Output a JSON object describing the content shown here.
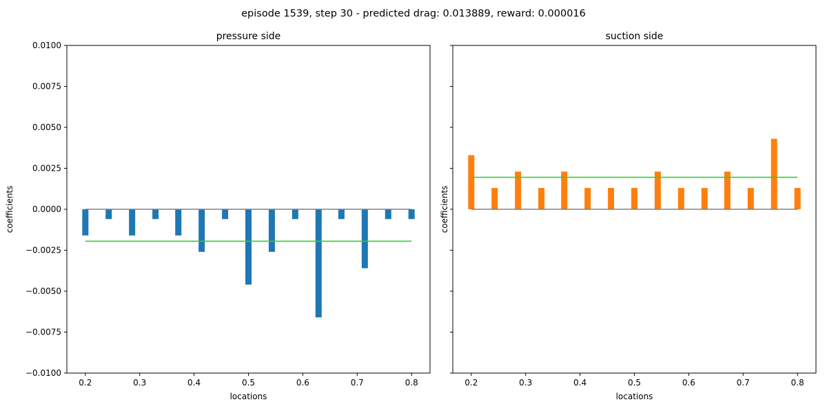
{
  "suptitle": "episode 1539, step 30 - predicted drag: 0.013889, reward: 0.000016",
  "chart_data": [
    {
      "type": "bar",
      "title": "pressure side",
      "xlabel": "locations",
      "ylabel": "coefficients",
      "ylim": [
        -0.01,
        0.01
      ],
      "xlim": [
        0.166,
        0.834
      ],
      "xticks": [
        0.2,
        0.3,
        0.4,
        0.5,
        0.6,
        0.7,
        0.8
      ],
      "xtick_labels": [
        "0.2",
        "0.3",
        "0.4",
        "0.5",
        "0.6",
        "0.7",
        "0.8"
      ],
      "yticks": [
        -0.01,
        -0.0075,
        -0.005,
        -0.0025,
        0.0,
        0.0025,
        0.005,
        0.0075,
        0.01
      ],
      "ytick_labels": [
        "−0.0100",
        "−0.0075",
        "−0.0050",
        "−0.0025",
        "0.0000",
        "0.0025",
        "0.0050",
        "0.0075",
        "0.0100"
      ],
      "show_yticklabels": true,
      "bar_width": 0.0114,
      "color": "#1f77b4",
      "x": [
        0.2,
        0.243,
        0.286,
        0.329,
        0.371,
        0.414,
        0.457,
        0.5,
        0.543,
        0.586,
        0.629,
        0.671,
        0.714,
        0.757,
        0.8
      ],
      "values": [
        -0.0016,
        -0.0006,
        -0.0016,
        -0.0006,
        -0.0016,
        -0.0026,
        -0.0006,
        -0.0046,
        -0.0026,
        -0.0006,
        -0.0066,
        -0.0006,
        -0.0036,
        -0.0006,
        -0.0006
      ],
      "lines": [
        {
          "y": 0.0,
          "x0": 0.2,
          "x1": 0.8,
          "color": "#808080"
        },
        {
          "y": -0.00195,
          "x0": 0.2,
          "x1": 0.8,
          "color": "#32cd32"
        }
      ]
    },
    {
      "type": "bar",
      "title": "suction side",
      "xlabel": "locations",
      "ylabel": "coefficients",
      "ylim": [
        -0.01,
        0.01
      ],
      "xlim": [
        0.166,
        0.834
      ],
      "xticks": [
        0.2,
        0.3,
        0.4,
        0.5,
        0.6,
        0.7,
        0.8
      ],
      "xtick_labels": [
        "0.2",
        "0.3",
        "0.4",
        "0.5",
        "0.6",
        "0.7",
        "0.8"
      ],
      "yticks": [
        -0.01,
        -0.0075,
        -0.005,
        -0.0025,
        0.0,
        0.0025,
        0.005,
        0.0075,
        0.01
      ],
      "ytick_labels": [
        "",
        "",
        "",
        "",
        "",
        "",
        "",
        "",
        ""
      ],
      "show_yticklabels": false,
      "bar_width": 0.0114,
      "color": "#ff7f0e",
      "x": [
        0.2,
        0.243,
        0.286,
        0.329,
        0.371,
        0.414,
        0.457,
        0.5,
        0.543,
        0.586,
        0.629,
        0.671,
        0.714,
        0.757,
        0.8
      ],
      "values": [
        0.0033,
        0.0013,
        0.0023,
        0.0013,
        0.0023,
        0.0013,
        0.0013,
        0.0013,
        0.0023,
        0.0013,
        0.0013,
        0.0023,
        0.0013,
        0.0043,
        0.0013
      ],
      "lines": [
        {
          "y": 0.0,
          "x0": 0.2,
          "x1": 0.8,
          "color": "#808080"
        },
        {
          "y": 0.00195,
          "x0": 0.2,
          "x1": 0.8,
          "color": "#32cd32"
        }
      ]
    }
  ]
}
